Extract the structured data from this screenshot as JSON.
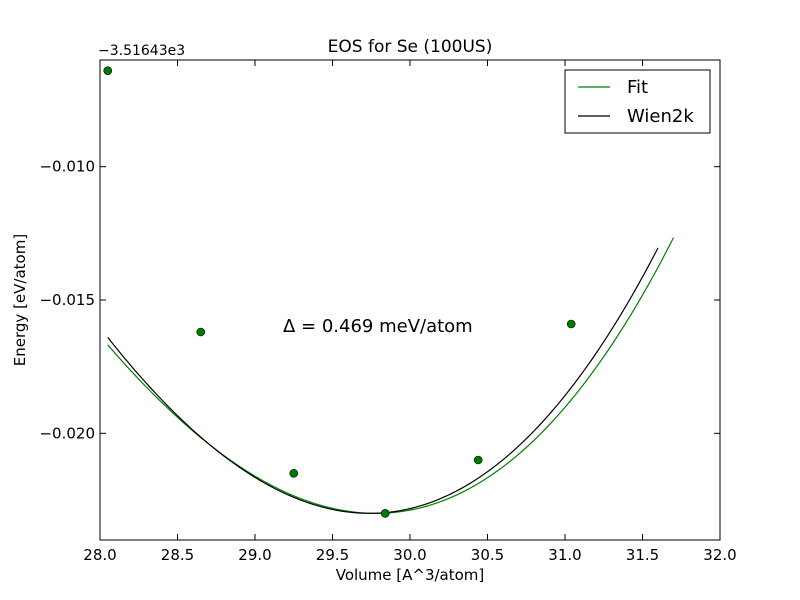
{
  "chart_data": {
    "type": "line",
    "title": "EOS for Se (100US)",
    "xlabel": "Volume [A^3/atom]",
    "ylabel": "Energy [eV/atom]",
    "offset_label": "−3.51643e3",
    "xlim": [
      28.0,
      32.0
    ],
    "ylim": [
      -0.024,
      -0.006
    ],
    "x_ticks": [
      28.0,
      28.5,
      29.0,
      29.5,
      30.0,
      30.5,
      31.0,
      31.5,
      32.0
    ],
    "x_tick_labels": [
      "28.0",
      "28.5",
      "29.0",
      "29.5",
      "30.0",
      "30.5",
      "31.0",
      "31.5",
      "32.0"
    ],
    "y_ticks": [
      -0.01,
      -0.015,
      -0.02
    ],
    "y_tick_labels": [
      "−0.010",
      "−0.015",
      "−0.020"
    ],
    "legend_position": "top-right",
    "annotation": "Δ = 0.469 meV/atom",
    "grid": false,
    "series": [
      {
        "name": "Fit",
        "color": "#008000",
        "curve": {
          "v0": 29.78,
          "e0": -0.023,
          "a": 0.00244,
          "b": 0.00019
        },
        "x_range": [
          28.05,
          31.7
        ]
      },
      {
        "name": "Wien2k",
        "color": "#000000",
        "curve": {
          "v0": 29.74,
          "e0": -0.023,
          "a": 0.00258,
          "b": 0.00016
        },
        "x_range": [
          28.05,
          31.6
        ]
      }
    ],
    "points": {
      "color": "#007a00",
      "x": [
        28.05,
        28.65,
        29.25,
        29.84,
        30.44,
        31.04
      ],
      "y": [
        -0.0064,
        -0.0162,
        -0.0215,
        -0.023,
        -0.021,
        -0.0159
      ]
    }
  }
}
